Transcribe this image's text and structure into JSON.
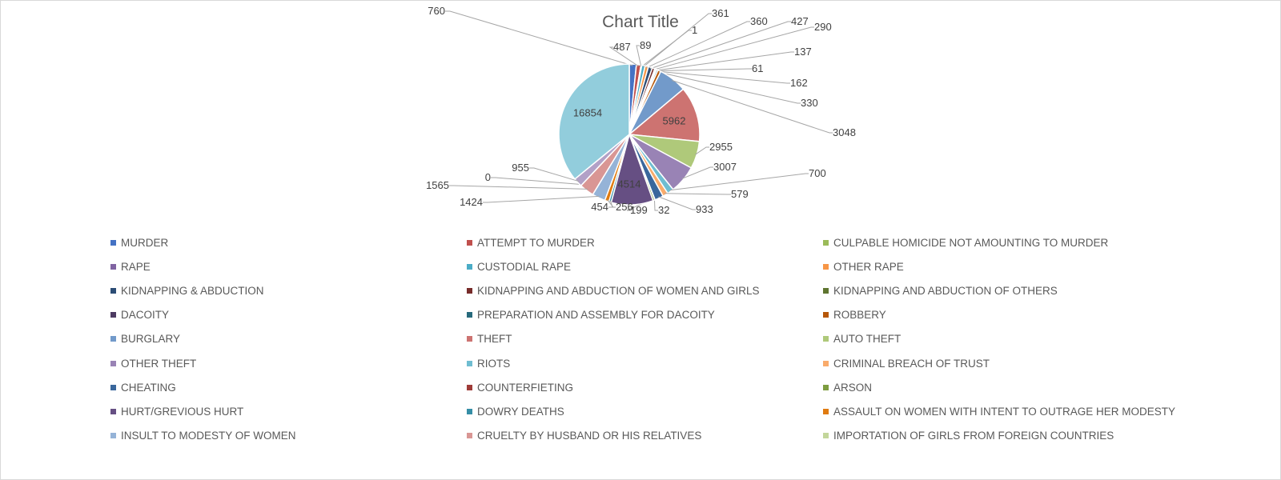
{
  "chart_data": {
    "type": "pie",
    "title": "Chart Title",
    "legend_position": "bottom",
    "series": [
      {
        "name": "MURDER",
        "value": 760,
        "color": "#4472C4"
      },
      {
        "name": "ATTEMPT TO MURDER",
        "value": 487,
        "color": "#ED7D31"
      },
      {
        "name": "CULPABLE HOMICIDE NOT AMOUNTING TO MURDER",
        "value": 89,
        "color": "#A5A5A5"
      },
      {
        "name": "RAPE",
        "value": 1,
        "color": "#FFC000"
      },
      {
        "name": "CUSTODIAL RAPE",
        "value": 361,
        "color": "#5B9BD5"
      },
      {
        "name": "OTHER RAPE",
        "value": 360,
        "color": "#70AD47"
      },
      {
        "name": "KIDNAPPING & ABDUCTION",
        "value": 427,
        "color": "#264478"
      },
      {
        "name": "KIDNAPPING AND ABDUCTION OF WOMEN AND GIRLS",
        "value": 290,
        "color": "#9E480E"
      },
      {
        "name": "KIDNAPPING AND ABDUCTION OF OTHERS",
        "value": 137,
        "color": "#636363"
      },
      {
        "name": "DACOITY",
        "value": 61,
        "color": "#997300"
      },
      {
        "name": "PREPARATION AND ASSEMBLY FOR DACOITY",
        "value": 162,
        "color": "#255E91"
      },
      {
        "name": "ROBBERY",
        "value": 330,
        "color": "#43682B"
      },
      {
        "name": "BURGLARY",
        "value": 3048,
        "color": "#698ED0"
      },
      {
        "name": "THEFT",
        "value": 5962,
        "color": "#F1975A"
      },
      {
        "name": "AUTO THEFT",
        "value": 2955,
        "color": "#B7B7B7"
      },
      {
        "name": "OTHER THEFT",
        "value": 3007,
        "color": "#FFCD33"
      },
      {
        "name": "RIOTS",
        "value": 700,
        "color": "#7CAFDD"
      },
      {
        "name": "CRIMINAL BREACH OF TRUST",
        "value": 579,
        "color": "#8CC168"
      },
      {
        "name": "CHEATING",
        "value": 933,
        "color": "#335AA1"
      },
      {
        "name": "COUNTERFIETING",
        "value": 32,
        "color": "#C55A11"
      },
      {
        "name": "ARSON",
        "value": 199,
        "color": "#848484"
      },
      {
        "name": "HURT/GREVIOUS HURT",
        "value": 4514,
        "color": "#CC9A00"
      },
      {
        "name": "DOWRY DEATHS",
        "value": 256,
        "color": "#327DC2"
      },
      {
        "name": "ASSAULT ON WOMEN WITH INTENT TO OUTRAGE HER MODESTY",
        "value": 454,
        "color": "#5A8A39"
      },
      {
        "name": "INSULT TO MODESTY OF WOMEN",
        "value": 1424,
        "color": "#8FAADC"
      },
      {
        "name": "CRUELTY BY HUSBAND OR HIS RELATIVES",
        "value": 1565,
        "color": "#F4B183"
      },
      {
        "name": "IMPORTATION OF GIRLS FROM FOREIGN COUNTRIES",
        "value": 0,
        "color": "#C9C9C9"
      },
      {
        "name": "",
        "value": 955,
        "color": "#FFD966"
      },
      {
        "name": "",
        "value": 16854,
        "color": "#9DC3E6"
      }
    ],
    "legend_colors": [
      "#4472C4",
      "#C0504D",
      "#9BBB59",
      "#8064A2",
      "#4BACC6",
      "#F79646",
      "#2C4D75",
      "#772C2A",
      "#5F7530",
      "#4D3B62",
      "#276A7C",
      "#B65708",
      "#729ACA",
      "#CD7371",
      "#AFC97A",
      "#9983B5",
      "#6FBDD1",
      "#F9AB6B",
      "#3A679C",
      "#9F3B38",
      "#7E9D40",
      "#664F83",
      "#358EA6",
      "#E07B10",
      "#95B3D7",
      "#D99694",
      "#C3D69B"
    ],
    "slice_colors": [
      "#4472C4",
      "#C0504D",
      "#9BBB59",
      "#8064A2",
      "#4BACC6",
      "#F79646",
      "#2C4D75",
      "#772C2A",
      "#5F7530",
      "#4D3B62",
      "#276A7C",
      "#B65708",
      "#729ACA",
      "#CD7371",
      "#AFC97A",
      "#9983B5",
      "#6FBDD1",
      "#F9AB6B",
      "#3A679C",
      "#9F3B38",
      "#7E9D40",
      "#664F83",
      "#358EA6",
      "#E07B10",
      "#95B3D7",
      "#D99694",
      "#C3D69B",
      "#B2A1C7",
      "#92CDDC"
    ]
  }
}
